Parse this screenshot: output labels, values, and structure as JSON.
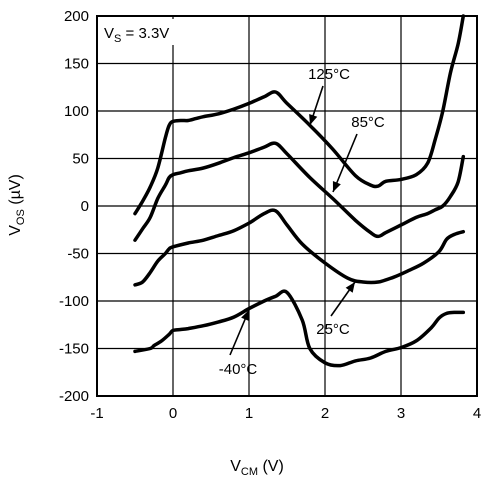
{
  "chart_data": {
    "type": "line",
    "xlabel_main": "V",
    "xlabel_sub": "CM",
    "xlabel_unit": " (V)",
    "ylabel_main": "V",
    "ylabel_sub": "OS",
    "ylabel_unit": " (µV)",
    "supply_main": "V",
    "supply_sub": "S",
    "supply_value": " = 3.3V",
    "xlim": [
      -1,
      4
    ],
    "ylim": [
      -200,
      200
    ],
    "xticks": [
      -1,
      0,
      1,
      2,
      3,
      4
    ],
    "yticks": [
      -200,
      -150,
      -100,
      -50,
      0,
      50,
      100,
      150,
      200
    ],
    "xtick_labels": [
      "-1",
      "0",
      "1",
      "2",
      "3",
      "4"
    ],
    "ytick_labels": [
      "-200",
      "-150",
      "-100",
      "-50",
      "0",
      "50",
      "100",
      "150",
      "200"
    ],
    "grid": true,
    "series": [
      {
        "name": "125°C",
        "x": [
          -0.5,
          -0.4,
          -0.3,
          -0.2,
          -0.1,
          -0.05,
          0.0,
          0.1,
          0.2,
          0.3,
          0.4,
          0.6,
          0.8,
          1.0,
          1.2,
          1.35,
          1.5,
          1.8,
          2.1,
          2.4,
          2.6,
          2.7,
          2.8,
          3.0,
          3.2,
          3.35,
          3.45,
          3.55,
          3.65,
          3.75,
          3.82
        ],
        "y": [
          -8,
          5,
          20,
          40,
          72,
          85,
          89,
          90,
          90,
          92,
          94,
          97,
          102,
          108,
          115,
          120,
          108,
          85,
          60,
          32,
          22,
          21,
          26,
          28,
          33,
          45,
          70,
          100,
          140,
          170,
          200
        ]
      },
      {
        "name": "85°C",
        "x": [
          -0.5,
          -0.4,
          -0.3,
          -0.2,
          -0.1,
          -0.05,
          0.0,
          0.1,
          0.2,
          0.4,
          0.6,
          0.8,
          1.0,
          1.2,
          1.35,
          1.5,
          1.8,
          2.1,
          2.4,
          2.6,
          2.7,
          2.8,
          3.0,
          3.2,
          3.35,
          3.45,
          3.55,
          3.65,
          3.75,
          3.82
        ],
        "y": [
          -36,
          -24,
          -12,
          8,
          22,
          30,
          33,
          35,
          37,
          40,
          45,
          51,
          56,
          62,
          66,
          55,
          30,
          8,
          -15,
          -28,
          -32,
          -28,
          -20,
          -12,
          -8,
          -4,
          0,
          10,
          25,
          52
        ]
      },
      {
        "name": "25°C",
        "x": [
          -0.5,
          -0.4,
          -0.3,
          -0.2,
          -0.1,
          -0.05,
          0.0,
          0.2,
          0.4,
          0.6,
          0.8,
          1.0,
          1.2,
          1.35,
          1.5,
          1.7,
          2.0,
          2.3,
          2.5,
          2.7,
          2.9,
          3.1,
          3.3,
          3.5,
          3.6,
          3.7,
          3.82
        ],
        "y": [
          -83,
          -80,
          -70,
          -58,
          -50,
          -45,
          -43,
          -39,
          -36,
          -31,
          -26,
          -18,
          -8,
          -5,
          -20,
          -40,
          -60,
          -76,
          -80,
          -80,
          -75,
          -68,
          -60,
          -48,
          -35,
          -30,
          -27
        ]
      },
      {
        "name": "-40°C",
        "x": [
          -0.5,
          -0.3,
          -0.25,
          -0.15,
          -0.05,
          0.0,
          0.1,
          0.2,
          0.4,
          0.6,
          0.8,
          1.0,
          1.2,
          1.35,
          1.5,
          1.7,
          1.8,
          2.0,
          2.2,
          2.4,
          2.6,
          2.8,
          3.0,
          3.2,
          3.4,
          3.5,
          3.6,
          3.7,
          3.82
        ],
        "y": [
          -153,
          -150,
          -147,
          -142,
          -135,
          -131,
          -130,
          -129,
          -126,
          -122,
          -117,
          -108,
          -100,
          -95,
          -91,
          -120,
          -150,
          -165,
          -168,
          -163,
          -160,
          -153,
          -149,
          -142,
          -128,
          -118,
          -113,
          -112,
          -112
        ]
      }
    ],
    "annotations": [
      {
        "text": "125°C",
        "series": "125°C"
      },
      {
        "text": "85°C",
        "series": "85°C"
      },
      {
        "text": "25°C",
        "series": "25°C"
      },
      {
        "text": "-40°C",
        "series": "-40°C"
      }
    ]
  }
}
